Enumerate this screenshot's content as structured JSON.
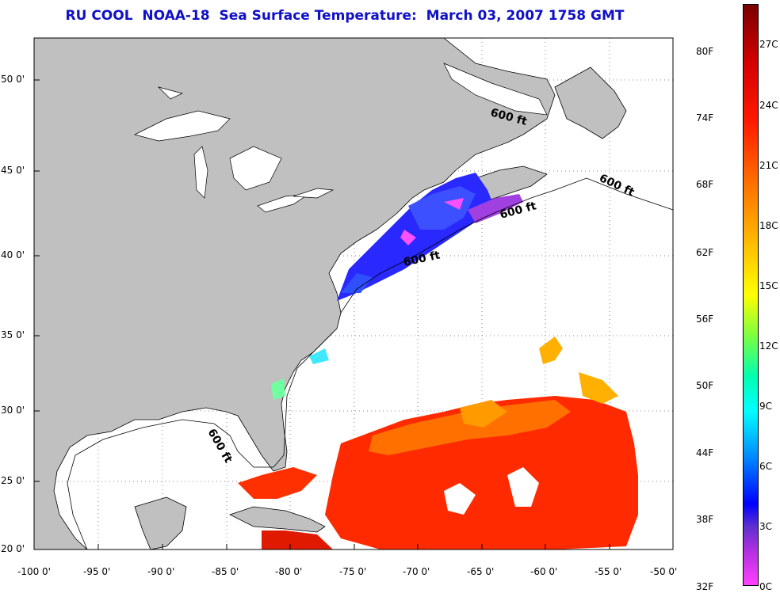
{
  "title": "RU COOL  NOAA-18  Sea Surface Temperature:  March 03, 2007 1758 GMT",
  "lat_labels": [
    "50 0'",
    "45 0'",
    "40 0'",
    "35 0'",
    "30 0'",
    "25 0'",
    "20 0'"
  ],
  "lon_labels": [
    "-100 0'",
    "-95 0'",
    "-90 0'",
    "-85 0'",
    "-80 0'",
    "-75 0'",
    "-70 0'",
    "-65 0'",
    "-60 0'",
    "-55 0'",
    "-50 0'"
  ],
  "isobath_labels": [
    "600 ft",
    "600 ft",
    "600 ft",
    "600 ft",
    "600 ft"
  ],
  "colorbar_f": [
    "80F",
    "74F",
    "68F",
    "62F",
    "56F",
    "50F",
    "44F",
    "38F",
    "32F"
  ],
  "colorbar_c": [
    "27C",
    "24C",
    "21C",
    "18C",
    "15C",
    "12C",
    "9C",
    "6C",
    "3C",
    "0C"
  ],
  "colors": {
    "land": "#c0c0c0",
    "ocean": "#ffffff",
    "title": "#1010c8"
  }
}
